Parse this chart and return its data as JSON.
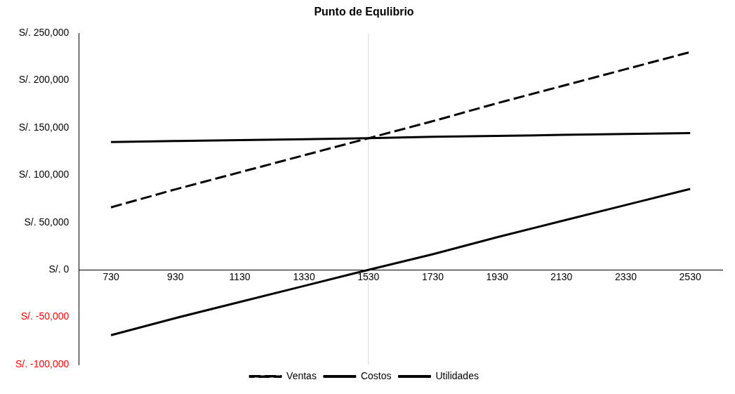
{
  "chart_data": {
    "type": "line",
    "title": "Punto de Equlibrio",
    "categories": [
      "730",
      "930",
      "1130",
      "1330",
      "1530",
      "1730",
      "1930",
      "2130",
      "2330",
      "2530"
    ],
    "series": [
      {
        "name": "Ventas",
        "color": "#000000",
        "line_style": "dashed",
        "values": [
          66000,
          85000,
          103000,
          121000,
          139000,
          157000,
          176000,
          194000,
          212000,
          230000
        ]
      },
      {
        "name": "Costos",
        "color": "#000000",
        "line_style": "solid",
        "values": [
          135000,
          136000,
          137000,
          138000,
          139000,
          140500,
          141500,
          142500,
          143500,
          144500
        ]
      },
      {
        "name": "Utilidades",
        "color": "#000000",
        "line_style": "solid",
        "values": [
          -69000,
          -51000,
          -34000,
          -17000,
          0,
          16500,
          34500,
          51500,
          68500,
          85500
        ]
      }
    ],
    "ylim": [
      -100000,
      250000
    ],
    "yticks": [
      {
        "value": -100000,
        "label": "S/. -100,000"
      },
      {
        "value": -50000,
        "label": "S/. -50,000"
      },
      {
        "value": 0,
        "label": "S/. 0"
      },
      {
        "value": 50000,
        "label": "S/. 50,000"
      },
      {
        "value": 100000,
        "label": "S/. 100,000"
      },
      {
        "value": 150000,
        "label": "S/. 150,000"
      },
      {
        "value": 200000,
        "label": "S/. 200,000"
      },
      {
        "value": 250000,
        "label": "S/. 250,000"
      }
    ],
    "ref_lines": [
      {
        "axis": "x",
        "value": "1530",
        "color": "#d9d9d9"
      }
    ],
    "grid": false,
    "marker": "none",
    "legend": "bottom"
  }
}
